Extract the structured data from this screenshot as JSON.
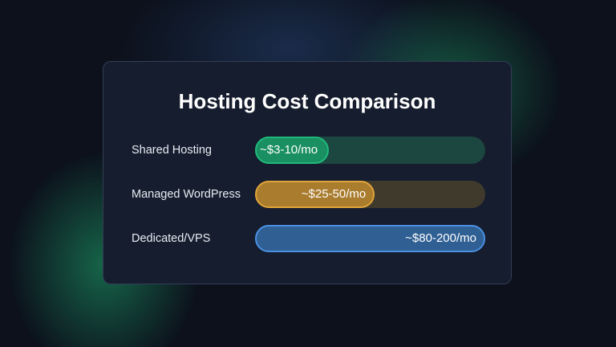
{
  "chart_data": {
    "type": "bar",
    "orientation": "horizontal",
    "title": "Hosting Cost Comparison",
    "categories": [
      "Shared Hosting",
      "Managed WordPress",
      "Dedicated/VPS"
    ],
    "labels": [
      "~$3-10/mo",
      "~$25-50/mo",
      "~$80-200/mo"
    ],
    "values": [
      32,
      52,
      100
    ],
    "colors": [
      "#1fb97c",
      "#e0a53a",
      "#4a90e2"
    ],
    "track_colors": [
      "#1c4640",
      "#3f3a2c",
      "#2f4f77"
    ],
    "fill_colors": [
      "#1a8f62",
      "#a97c2e",
      "#2f5f93"
    ]
  }
}
